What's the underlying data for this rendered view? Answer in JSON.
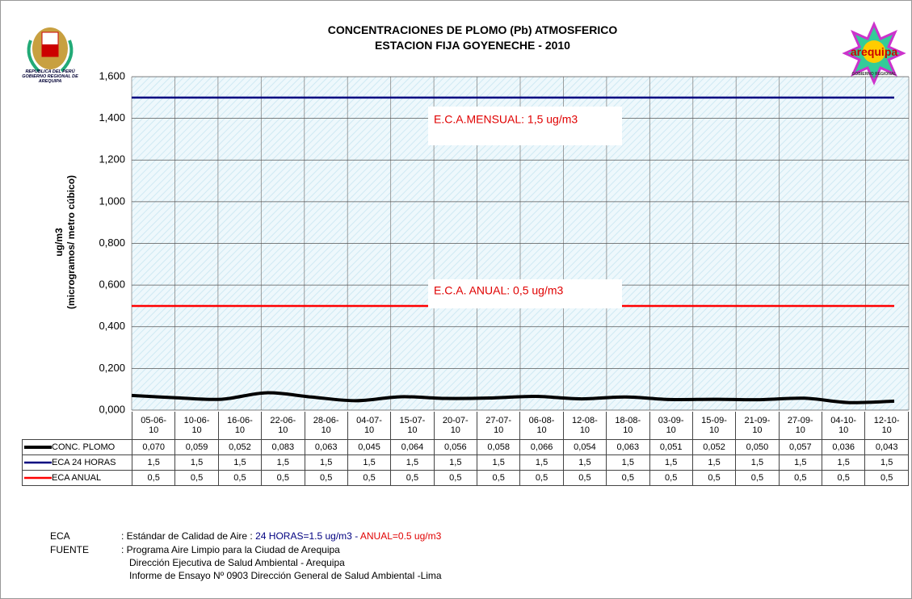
{
  "chart_data": {
    "type": "line",
    "title_lines": [
      "CONCENTRACIONES DE PLOMO (Pb) ATMOSFERICO",
      "ESTACION FIJA GOYENECHE - 2010"
    ],
    "ylabel_lines": [
      "ug/m3",
      "(microgramos/ metro cúbico)"
    ],
    "categories": [
      "05-06-10",
      "10-06-10",
      "16-06-10",
      "22-06-10",
      "28-06-10",
      "04-07-10",
      "15-07-10",
      "20-07-10",
      "27-07-10",
      "06-08-10",
      "12-08-10",
      "18-08-10",
      "03-09-10",
      "15-09-10",
      "21-09-10",
      "27-09-10",
      "04-10-10",
      "12-10-10"
    ],
    "series": [
      {
        "name": "CONC. PLOMO",
        "color": "#000000",
        "values": [
          0.07,
          0.059,
          0.052,
          0.083,
          0.063,
          0.045,
          0.064,
          0.056,
          0.058,
          0.066,
          0.054,
          0.063,
          0.051,
          0.052,
          0.05,
          0.057,
          0.036,
          0.043
        ],
        "value_labels": [
          "0,070",
          "0,059",
          "0,052",
          "0,083",
          "0,063",
          "0,045",
          "0,064",
          "0,056",
          "0,058",
          "0,066",
          "0,054",
          "0,063",
          "0,051",
          "0,052",
          "0,050",
          "0,057",
          "0,036",
          "0,043"
        ]
      },
      {
        "name": "ECA 24 HORAS",
        "color": "#000080",
        "values": [
          1.5,
          1.5,
          1.5,
          1.5,
          1.5,
          1.5,
          1.5,
          1.5,
          1.5,
          1.5,
          1.5,
          1.5,
          1.5,
          1.5,
          1.5,
          1.5,
          1.5,
          1.5
        ],
        "value_labels": [
          "1,5",
          "1,5",
          "1,5",
          "1,5",
          "1,5",
          "1,5",
          "1,5",
          "1,5",
          "1,5",
          "1,5",
          "1,5",
          "1,5",
          "1,5",
          "1,5",
          "1,5",
          "1,5",
          "1,5",
          "1,5"
        ]
      },
      {
        "name": "ECA ANUAL",
        "color": "#ff0000",
        "values": [
          0.5,
          0.5,
          0.5,
          0.5,
          0.5,
          0.5,
          0.5,
          0.5,
          0.5,
          0.5,
          0.5,
          0.5,
          0.5,
          0.5,
          0.5,
          0.5,
          0.5,
          0.5
        ],
        "value_labels": [
          "0,5",
          "0,5",
          "0,5",
          "0,5",
          "0,5",
          "0,5",
          "0,5",
          "0,5",
          "0,5",
          "0,5",
          "0,5",
          "0,5",
          "0,5",
          "0,5",
          "0,5",
          "0,5",
          "0,5",
          "0,5"
        ]
      }
    ],
    "annotations": [
      "E.C.A.MENSUAL: 1,5 ug/m3",
      "E.C.A. ANUAL: 0,5 ug/m3"
    ],
    "ylim": [
      0,
      1.6
    ],
    "yticks": [
      {
        "value": 0,
        "label": "0,000"
      },
      {
        "value": 0.2,
        "label": "0,200"
      },
      {
        "value": 0.4,
        "label": "0,400"
      },
      {
        "value": 0.6,
        "label": "0,600"
      },
      {
        "value": 0.8,
        "label": "0,800"
      },
      {
        "value": 1.0,
        "label": "1,000"
      },
      {
        "value": 1.2,
        "label": "1,200"
      },
      {
        "value": 1.4,
        "label": "1,400"
      },
      {
        "value": 1.6,
        "label": "1,600"
      }
    ],
    "grid": true
  },
  "logos": {
    "left_caption": [
      "REPUBLICA DEL PERÚ",
      "GOBIERNO REGIONAL DE",
      "AREQUIPA"
    ],
    "right_name": "arequipa",
    "right_caption": "GOBIERNO REGIONAL"
  },
  "notes": {
    "eca_label": "ECA",
    "eca_text": ": Estándar de Calidad de Aire :",
    "eca_24": "24 HORAS=1.5 ug/m3",
    "eca_sep": "-",
    "eca_anual": "ANUAL=0.5 ug/m3",
    "fuente_label": "FUENTE",
    "fuente_lines": [
      ": Programa Aire Limpio para la Ciudad de Arequipa",
      "Dirección Ejecutiva de Salud Ambiental - Arequipa",
      "Informe de Ensayo Nº 0903 Dirección General de Salud Ambiental -Lima"
    ]
  }
}
